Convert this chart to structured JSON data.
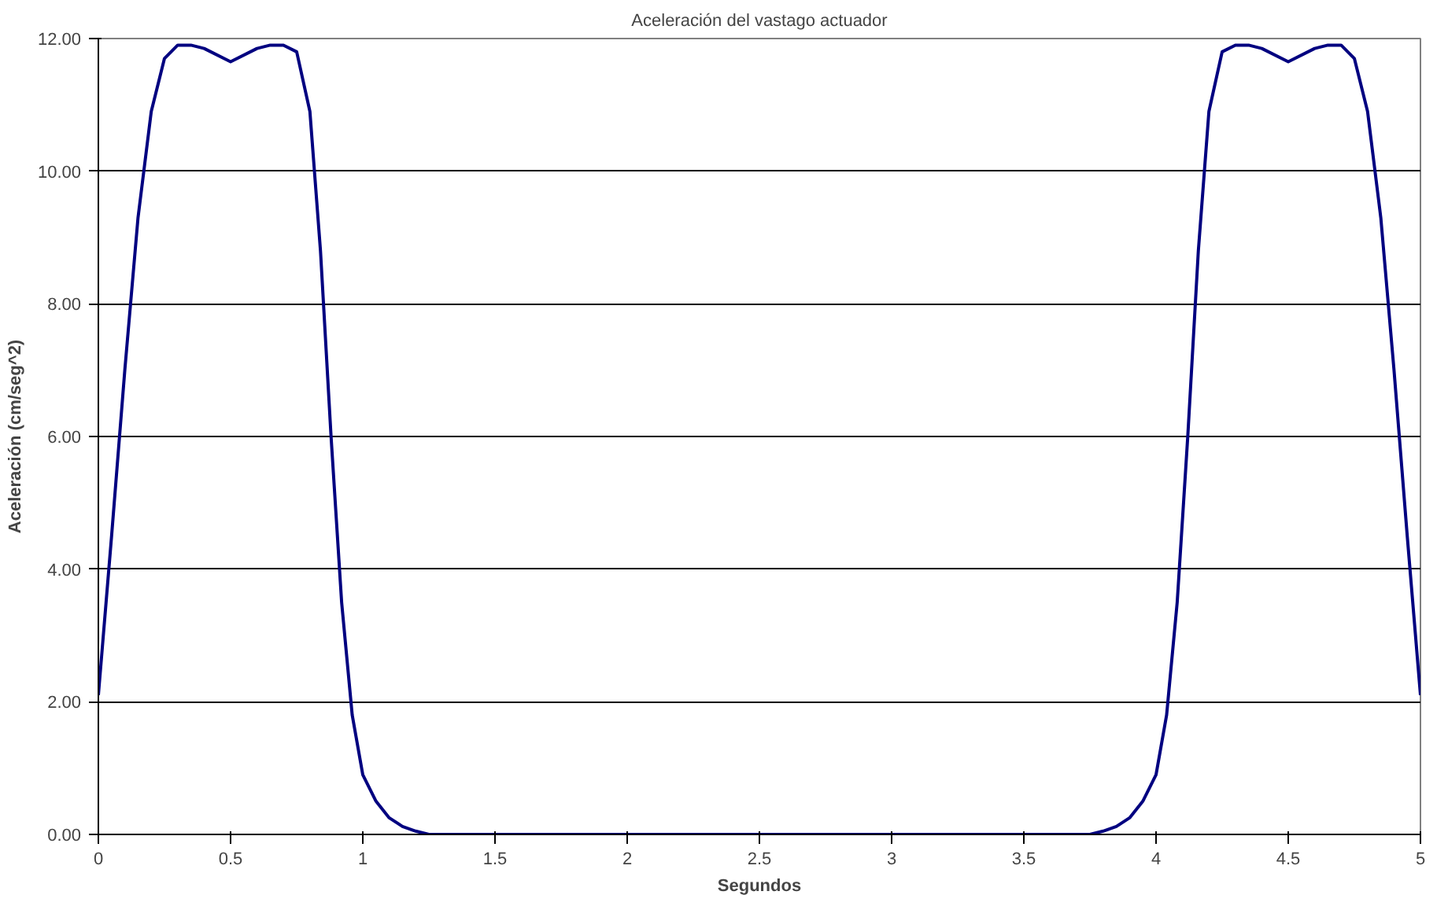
{
  "chart_data": {
    "type": "line",
    "title": "Aceleración del vastago actuador",
    "xlabel": "Segundos",
    "ylabel": "Aceleración (cm/seg^2)",
    "x": [
      0,
      0.05,
      0.1,
      0.15,
      0.2,
      0.25,
      0.3,
      0.35,
      0.4,
      0.5,
      0.6,
      0.65,
      0.7,
      0.75,
      0.8,
      0.84,
      0.88,
      0.92,
      0.96,
      1.0,
      1.05,
      1.1,
      1.15,
      1.2,
      1.25,
      1.3,
      1.5,
      2,
      2.5,
      3,
      3.5,
      3.7,
      3.75,
      3.8,
      3.85,
      3.9,
      3.95,
      4.0,
      4.04,
      4.08,
      4.12,
      4.16,
      4.2,
      4.25,
      4.3,
      4.35,
      4.4,
      4.5,
      4.6,
      4.65,
      4.7,
      4.75,
      4.8,
      4.85,
      4.9,
      4.95,
      5
    ],
    "series": [
      {
        "color": "#000080",
        "values": [
          2.1,
          4.5,
          7.0,
          9.3,
          10.9,
          11.7,
          11.9,
          11.9,
          11.85,
          11.65,
          11.85,
          11.9,
          11.9,
          11.8,
          10.9,
          8.8,
          6.0,
          3.5,
          1.8,
          0.9,
          0.5,
          0.25,
          0.12,
          0.05,
          0,
          0,
          0,
          0,
          0,
          0,
          0,
          0,
          0,
          0.05,
          0.12,
          0.25,
          0.5,
          0.9,
          1.8,
          3.5,
          6.0,
          8.8,
          10.9,
          11.8,
          11.9,
          11.9,
          11.85,
          11.65,
          11.85,
          11.9,
          11.9,
          11.7,
          10.9,
          9.3,
          7.0,
          4.5,
          2.1
        ]
      }
    ],
    "xlim": [
      0,
      5
    ],
    "xticks": [
      0,
      0.5,
      1,
      1.5,
      2,
      2.5,
      3,
      3.5,
      4,
      4.5,
      5
    ],
    "ylim": [
      0,
      12
    ],
    "yticks": [
      {
        "value": 0,
        "label": "0.00"
      },
      {
        "value": 2,
        "label": "2.00"
      },
      {
        "value": 4,
        "label": "4.00"
      },
      {
        "value": 6,
        "label": "6.00"
      },
      {
        "value": 8,
        "label": "8.00"
      },
      {
        "value": 10,
        "label": "10.00"
      },
      {
        "value": 12,
        "label": "12.00"
      }
    ],
    "grid": "y",
    "marker": "none",
    "line_style": "solid"
  }
}
